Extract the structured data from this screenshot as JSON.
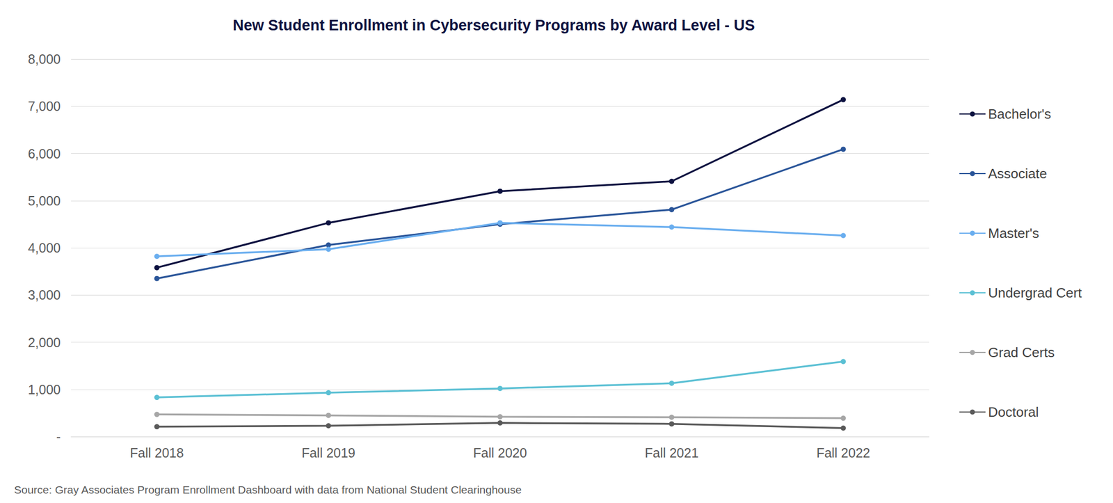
{
  "chart_data": {
    "type": "line",
    "title": "New Student Enrollment in Cybersecurity Programs by Award Level - US",
    "source": "Source: Gray Associates Program Enrollment Dashboard with data from National Student Clearinghouse",
    "categories": [
      "Fall 2018",
      "Fall 2019",
      "Fall 2020",
      "Fall 2021",
      "Fall 2022"
    ],
    "series": [
      {
        "name": "Bachelor's",
        "color": "#0d1240",
        "values": [
          3580,
          4530,
          5200,
          5410,
          7140
        ]
      },
      {
        "name": "Associate",
        "color": "#2a5599",
        "values": [
          3350,
          4060,
          4500,
          4810,
          6090
        ]
      },
      {
        "name": "Master's",
        "color": "#6aaeef",
        "values": [
          3820,
          3970,
          4530,
          4440,
          4260
        ]
      },
      {
        "name": "Undergrad Cert",
        "color": "#5bc0d4",
        "values": [
          830,
          930,
          1020,
          1130,
          1590
        ]
      },
      {
        "name": "Grad Certs",
        "color": "#a6a6a6",
        "values": [
          470,
          450,
          420,
          410,
          390
        ]
      },
      {
        "name": "Doctoral",
        "color": "#595959",
        "values": [
          210,
          230,
          290,
          270,
          180
        ]
      }
    ],
    "ylim": [
      0,
      8000
    ],
    "yticks": [
      {
        "value": 0,
        "label": "-"
      },
      {
        "value": 1000,
        "label": "1,000"
      },
      {
        "value": 2000,
        "label": "2,000"
      },
      {
        "value": 3000,
        "label": "3,000"
      },
      {
        "value": 4000,
        "label": "4,000"
      },
      {
        "value": 5000,
        "label": "5,000"
      },
      {
        "value": 6000,
        "label": "6,000"
      },
      {
        "value": 7000,
        "label": "7,000"
      },
      {
        "value": 8000,
        "label": "8,000"
      }
    ],
    "grid": true,
    "legend": "right",
    "marker": "circle"
  }
}
